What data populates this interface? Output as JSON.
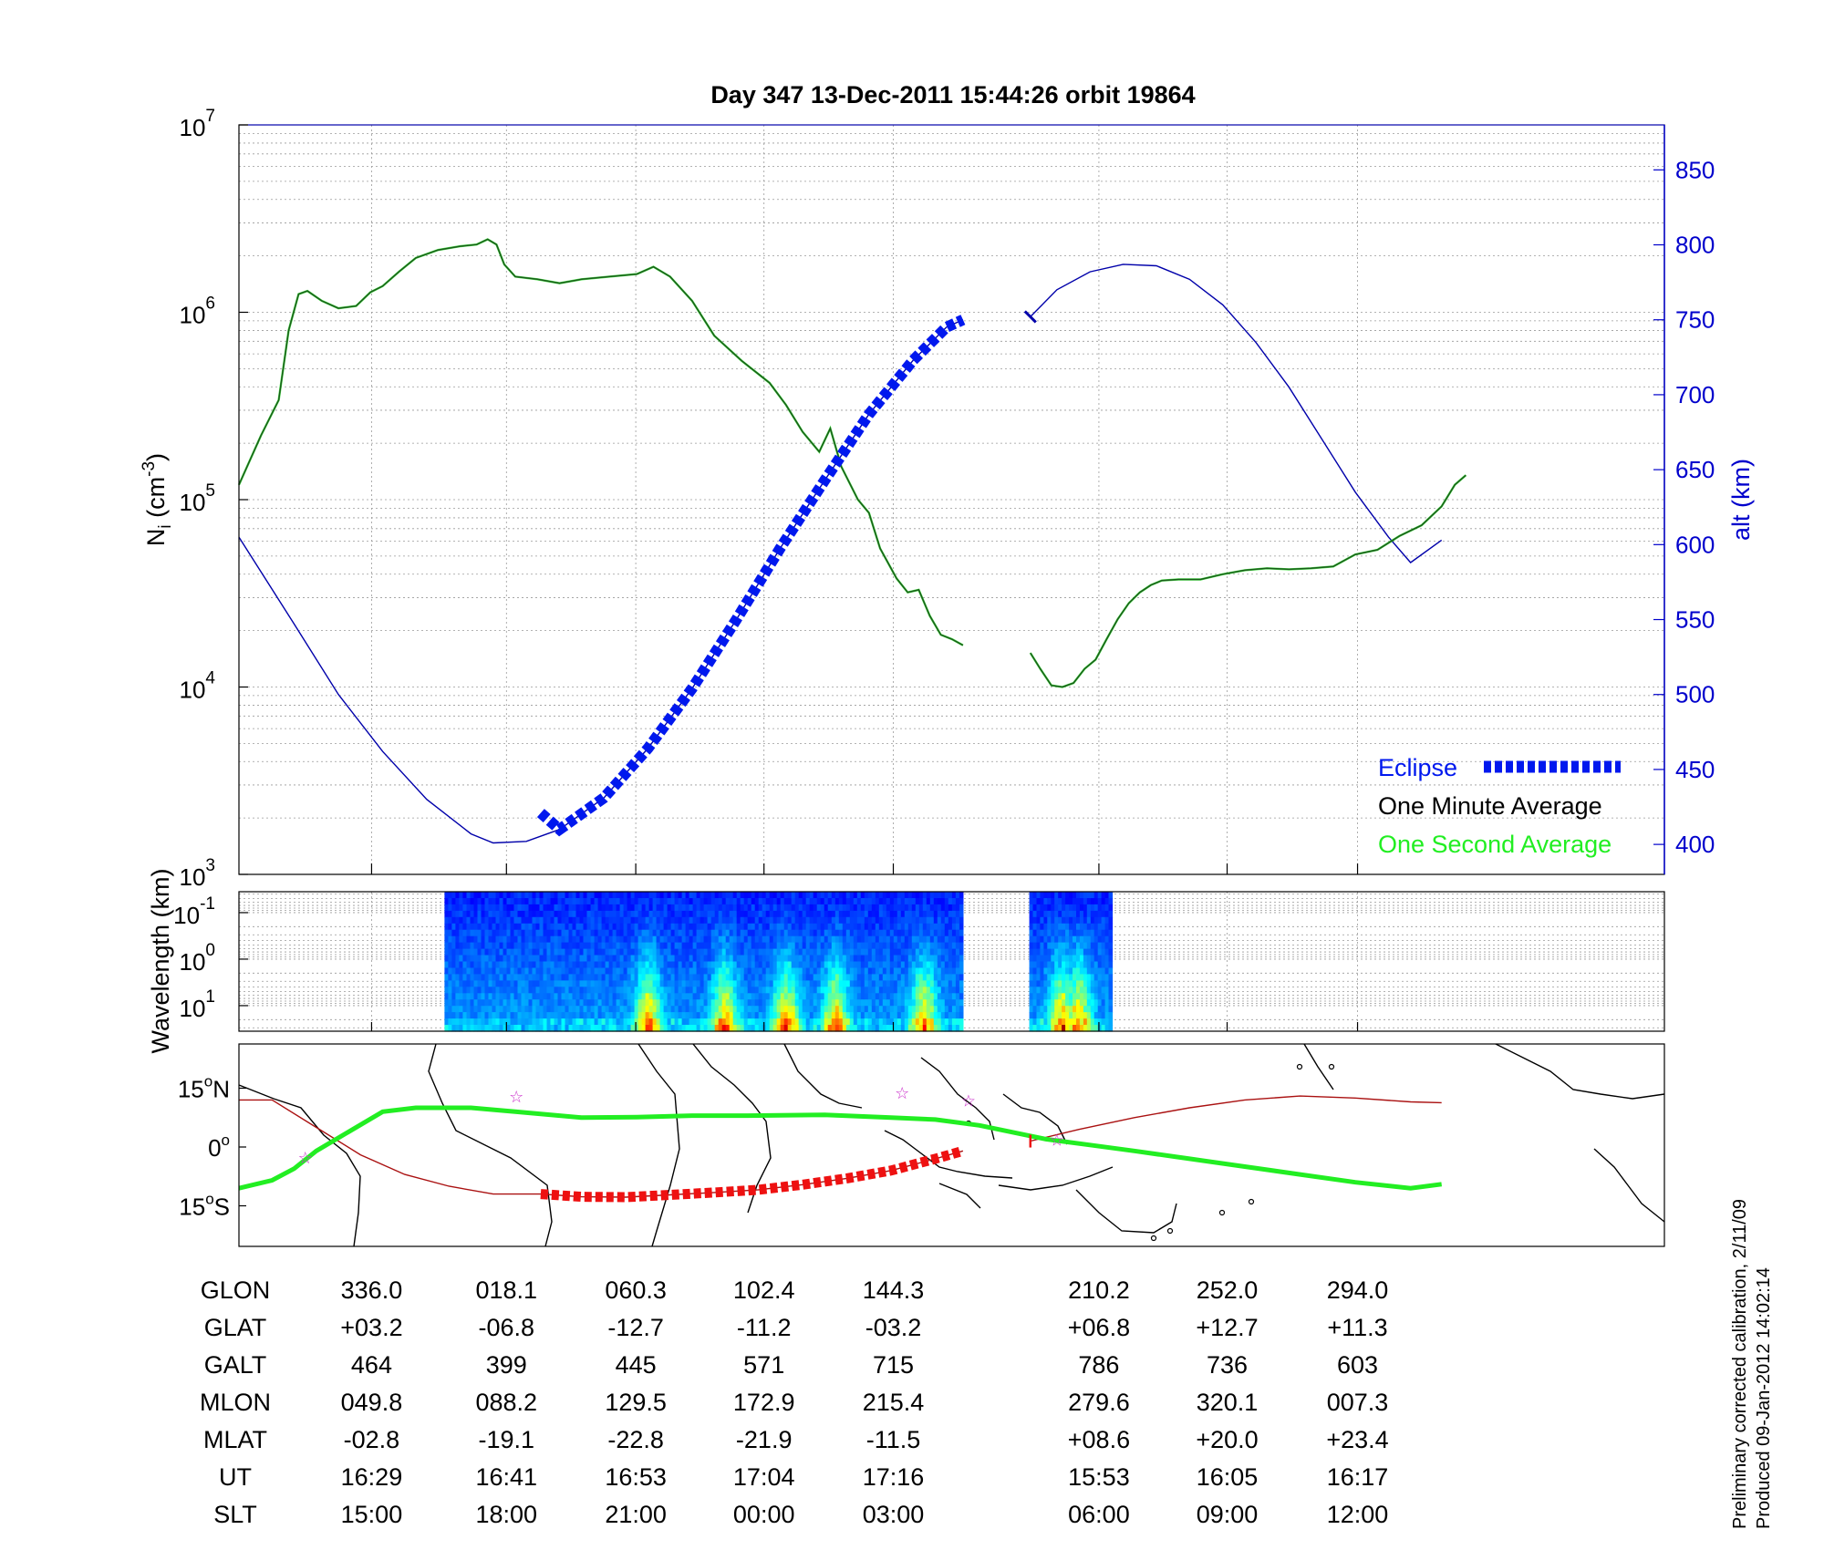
{
  "title": "Day 347  13-Dec-2011 15:44:26   orbit 19864",
  "colors": {
    "ni_line": "#1a5c1a",
    "ni_second": "#22dd22",
    "alt_line": "#0000aa",
    "eclipse": "#0018ee",
    "track_eclipse": "#ee1111",
    "magnetic_track": "#aa1111",
    "green_track": "#22ee22",
    "right_axis": "#0000cc",
    "star": "#cc33cc"
  },
  "chart_data": [
    {
      "type": "line",
      "panel": "density-altitude",
      "title": "Day 347  13-Dec-2011 15:44:26   orbit 19864",
      "ylabel": "N_i (cm^-3)",
      "ylabel_parts": {
        "base": "N",
        "sub": "i",
        "unit_open": " (cm",
        "sup": "-3",
        "unit_close": ")"
      },
      "y_scale": "log",
      "ylim": [
        1000,
        10000000
      ],
      "y_ticks": [
        {
          "base": "10",
          "exp": "3"
        },
        {
          "base": "10",
          "exp": "4"
        },
        {
          "base": "10",
          "exp": "5"
        },
        {
          "base": "10",
          "exp": "6"
        },
        {
          "base": "10",
          "exp": "7"
        }
      ],
      "y2label": "alt (km)",
      "y2lim": [
        380,
        880
      ],
      "y2_ticks": [
        "400",
        "450",
        "500",
        "550",
        "600",
        "650",
        "700",
        "750",
        "800",
        "850"
      ],
      "x_range_minutes": [
        -1,
        85
      ],
      "grid": true,
      "legend": {
        "position": "bottom-right",
        "entries": [
          {
            "label": "Eclipse",
            "color": "#0018ee",
            "style": "dashed-thick"
          },
          {
            "label": "One Minute Average",
            "color": "#000000"
          },
          {
            "label": "One Second Average",
            "color": "#22ee22"
          }
        ]
      },
      "series": [
        {
          "name": "One Minute Average",
          "segment1": [
            [
              -1,
              120000
            ],
            [
              1,
              220000
            ],
            [
              2.6,
              340000
            ],
            [
              3.5,
              800000
            ],
            [
              4.4,
              1250000
            ],
            [
              5.2,
              1300000
            ],
            [
              6.5,
              1150000
            ],
            [
              8,
              1050000
            ],
            [
              9.6,
              1080000
            ],
            [
              10.9,
              1280000
            ],
            [
              12,
              1380000
            ],
            [
              13.5,
              1650000
            ],
            [
              15,
              1950000
            ],
            [
              17,
              2150000
            ],
            [
              19,
              2250000
            ],
            [
              20.5,
              2300000
            ],
            [
              21.5,
              2450000
            ],
            [
              22.3,
              2300000
            ],
            [
              23,
              1800000
            ],
            [
              24,
              1550000
            ],
            [
              26,
              1500000
            ],
            [
              28,
              1430000
            ],
            [
              30,
              1500000
            ],
            [
              32.5,
              1550000
            ],
            [
              35,
              1600000
            ],
            [
              36.5,
              1750000
            ],
            [
              38,
              1550000
            ],
            [
              40,
              1150000
            ],
            [
              42,
              750000
            ],
            [
              44.5,
              550000
            ],
            [
              47,
              420000
            ],
            [
              48.5,
              320000
            ],
            [
              50,
              230000
            ],
            [
              51.5,
              180000
            ],
            [
              52.5,
              240000
            ],
            [
              53.5,
              150000
            ],
            [
              55,
              100000
            ],
            [
              56,
              85000
            ],
            [
              57,
              55000
            ],
            [
              58.5,
              38000
            ],
            [
              59.5,
              32000
            ],
            [
              60.5,
              33000
            ],
            [
              61.5,
              24000
            ],
            [
              62.5,
              19000
            ],
            [
              63.5,
              18000
            ],
            [
              64.5,
              16700
            ]
          ],
          "segment2": [
            [
              70.6,
              15200
            ],
            [
              71.5,
              12500
            ],
            [
              72.5,
              10200
            ],
            [
              73.5,
              10000
            ],
            [
              74.5,
              10500
            ],
            [
              75.5,
              12500
            ],
            [
              76.5,
              14000
            ],
            [
              77.5,
              18000
            ],
            [
              78.5,
              23000
            ],
            [
              79.5,
              28000
            ],
            [
              80.5,
              32000
            ],
            [
              81.5,
              35000
            ],
            [
              82.5,
              37000
            ],
            [
              84,
              37500
            ],
            [
              86,
              37500
            ],
            [
              88,
              40000
            ],
            [
              90,
              42000
            ],
            [
              92,
              43000
            ],
            [
              94,
              42500
            ],
            [
              96,
              43000
            ],
            [
              98,
              44000
            ],
            [
              100,
              51000
            ],
            [
              102,
              54000
            ],
            [
              104,
              64000
            ],
            [
              106,
              73000
            ],
            [
              107.8,
              92000
            ],
            [
              109,
              120000
            ],
            [
              110,
              135000
            ]
          ]
        },
        {
          "name": "Altitude (km)",
          "segment1": [
            [
              -1,
              605
            ],
            [
              4,
              547
            ],
            [
              8,
              500
            ],
            [
              12,
              462
            ],
            [
              16,
              430
            ],
            [
              20,
              407
            ],
            [
              22,
              401
            ],
            [
              25,
              402
            ],
            [
              28,
              410
            ],
            [
              32,
              431
            ],
            [
              36,
              464
            ],
            [
              40,
              504
            ],
            [
              44,
              550
            ],
            [
              48,
              598
            ],
            [
              52,
              643
            ],
            [
              56,
              687
            ],
            [
              60,
              723
            ],
            [
              63,
              745
            ],
            [
              64.5,
              750
            ]
          ],
          "segment2": [
            [
              70.6,
              752
            ],
            [
              73,
              770
            ],
            [
              76,
              782
            ],
            [
              79,
              787
            ],
            [
              82,
              786
            ],
            [
              85,
              777
            ],
            [
              88,
              760
            ],
            [
              91,
              735
            ],
            [
              94,
              705
            ],
            [
              97,
              670
            ],
            [
              100,
              635
            ],
            [
              103,
              605
            ],
            [
              105,
              588
            ],
            [
              107.8,
              603
            ]
          ]
        },
        {
          "name": "Eclipse",
          "x": [
            26.3,
            64.5
          ],
          "altitude_km": [
            421,
            750
          ]
        }
      ]
    },
    {
      "type": "heatmap",
      "panel": "spectrogram",
      "ylabel": "Wavelength (km)",
      "y_scale": "log",
      "y_ticks": [
        {
          "base": "10",
          "exp": "-1"
        },
        {
          "base": "10",
          "exp": "0"
        },
        {
          "base": "10",
          "exp": "1"
        }
      ],
      "data_blocks_minutes": [
        [
          17.6,
          64.5
        ],
        [
          70.5,
          78
        ]
      ],
      "colormap": "jet",
      "intensity_peaks_minutes": [
        36,
        43,
        48.5,
        53,
        61,
        73.5,
        75
      ]
    },
    {
      "type": "line",
      "panel": "ground-track map",
      "y_ticks": [
        {
          "value": "15",
          "hemi": "N"
        },
        {
          "value": "0",
          "hemi": ""
        },
        {
          "value": "15",
          "hemi": "S"
        }
      ],
      "series": [
        {
          "name": "Satellite ground track (lat)",
          "points": [
            [
              -1,
              12
            ],
            [
              2,
              12
            ],
            [
              6,
              5
            ],
            [
              10,
              -2
            ],
            [
              14,
              -7
            ],
            [
              18,
              -10
            ],
            [
              22,
              -12
            ],
            [
              26.3,
              -12
            ],
            [
              30,
              -12.7
            ],
            [
              34,
              -12.8
            ],
            [
              38,
              -12.2
            ],
            [
              42,
              -11.6
            ],
            [
              46,
              -10.9
            ],
            [
              50,
              -9.6
            ],
            [
              54,
              -8.0
            ],
            [
              58,
              -6.0
            ],
            [
              62,
              -3.0
            ],
            [
              64.5,
              -1.0
            ],
            [
              70.6,
              1.5
            ],
            [
              75,
              4.5
            ],
            [
              80,
              7.5
            ],
            [
              85,
              10
            ],
            [
              90,
              12
            ],
            [
              95,
              13
            ],
            [
              100,
              12.5
            ],
            [
              105,
              11.5
            ],
            [
              107.8,
              11.3
            ]
          ]
        },
        {
          "name": "Magnetic equator track",
          "points": [
            [
              -1,
              -10.5
            ],
            [
              2,
              -8.5
            ],
            [
              4,
              -5.5
            ],
            [
              6,
              -1
            ],
            [
              9,
              4
            ],
            [
              12,
              9
            ],
            [
              15,
              10
            ],
            [
              20,
              10
            ],
            [
              24,
              9
            ],
            [
              30,
              7.5
            ],
            [
              35,
              7.6
            ],
            [
              40,
              8
            ],
            [
              45,
              8
            ],
            [
              52,
              8.2
            ],
            [
              58,
              7.5
            ],
            [
              62,
              7
            ],
            [
              66,
              5.5
            ],
            [
              72,
              2
            ],
            [
              76,
              0.5
            ],
            [
              80,
              -1
            ],
            [
              85,
              -3
            ],
            [
              90,
              -5
            ],
            [
              95,
              -7
            ],
            [
              100,
              -9
            ],
            [
              105,
              -10.5
            ],
            [
              107.8,
              -9.5
            ]
          ]
        }
      ],
      "stars_minutes_lat": [
        [
          5,
          -2.5
        ],
        [
          24.1,
          13
        ],
        [
          59,
          14
        ],
        [
          65,
          12
        ],
        [
          73,
          2
        ]
      ]
    }
  ],
  "table": {
    "row_labels": [
      "GLON",
      "GLAT",
      "GALT",
      "MLON",
      "MLAT",
      "UT",
      "SLT"
    ],
    "columns": [
      [
        "336.0",
        "+03.2",
        "464",
        "049.8",
        "-02.8",
        "16:29",
        "15:00"
      ],
      [
        "018.1",
        "-06.8",
        "399",
        "088.2",
        "-19.1",
        "16:41",
        "18:00"
      ],
      [
        "060.3",
        "-12.7",
        "445",
        "129.5",
        "-22.8",
        "16:53",
        "21:00"
      ],
      [
        "102.4",
        "-11.2",
        "571",
        "172.9",
        "-21.9",
        "17:04",
        "00:00"
      ],
      [
        "144.3",
        "-03.2",
        "715",
        "215.4",
        "-11.5",
        "17:16",
        "03:00"
      ],
      [
        "210.2",
        "+06.8",
        "786",
        "279.6",
        "+08.6",
        "15:53",
        "06:00"
      ],
      [
        "252.0",
        "+12.7",
        "736",
        "320.1",
        "+20.0",
        "16:05",
        "09:00"
      ],
      [
        "294.0",
        "+11.3",
        "603",
        "007.3",
        "+23.4",
        "16:17",
        "12:00"
      ]
    ]
  },
  "footer": {
    "line1": "Preliminary corrected calibration, 2/11/09",
    "line2": "Produced 09-Jan-2012 14:02:14"
  }
}
